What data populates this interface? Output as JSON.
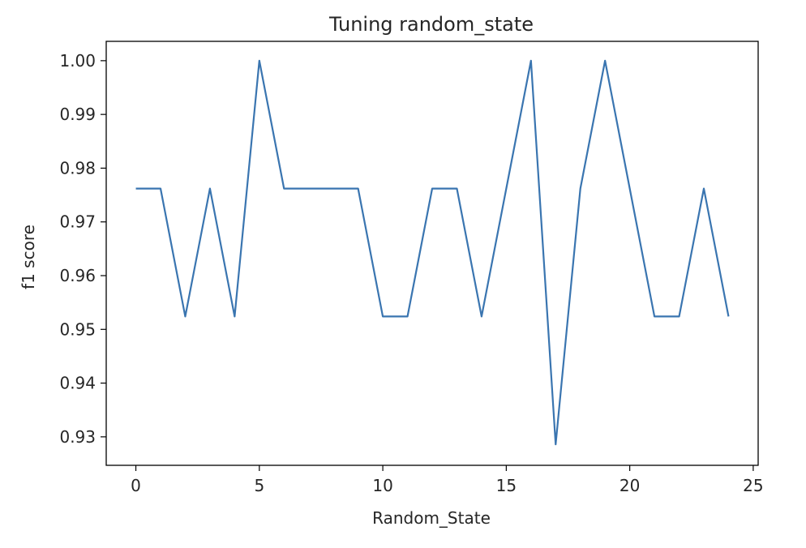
{
  "chart_data": {
    "type": "line",
    "title": "Tuning random_state",
    "xlabel": "Random_State",
    "ylabel": "f1 score",
    "xlim": [
      -1.2,
      25.2
    ],
    "ylim": [
      0.9247,
      1.0036
    ],
    "xticks": [
      0,
      5,
      10,
      15,
      20,
      25
    ],
    "xtick_labels": [
      "0",
      "5",
      "10",
      "15",
      "20",
      "25"
    ],
    "yticks": [
      0.93,
      0.94,
      0.95,
      0.96,
      0.97,
      0.98,
      0.99,
      1.0
    ],
    "ytick_labels": [
      "0.93",
      "0.94",
      "0.95",
      "0.96",
      "0.97",
      "0.98",
      "0.99",
      "1.00"
    ],
    "grid": false,
    "series": [
      {
        "color": "#3a75b0",
        "x": [
          0,
          1,
          2,
          3,
          4,
          5,
          6,
          7,
          8,
          9,
          10,
          11,
          12,
          13,
          14,
          15,
          16,
          17,
          18,
          19,
          20,
          21,
          22,
          23,
          24
        ],
        "y": [
          0.9762,
          0.9762,
          0.9524,
          0.9762,
          0.9524,
          1.0,
          0.9762,
          0.9762,
          0.9762,
          0.9762,
          0.9524,
          0.9524,
          0.9762,
          0.9762,
          0.9524,
          0.9762,
          1.0,
          0.9286,
          0.9762,
          1.0,
          0.9762,
          0.9524,
          0.9524,
          0.9762,
          0.9524
        ]
      }
    ]
  }
}
